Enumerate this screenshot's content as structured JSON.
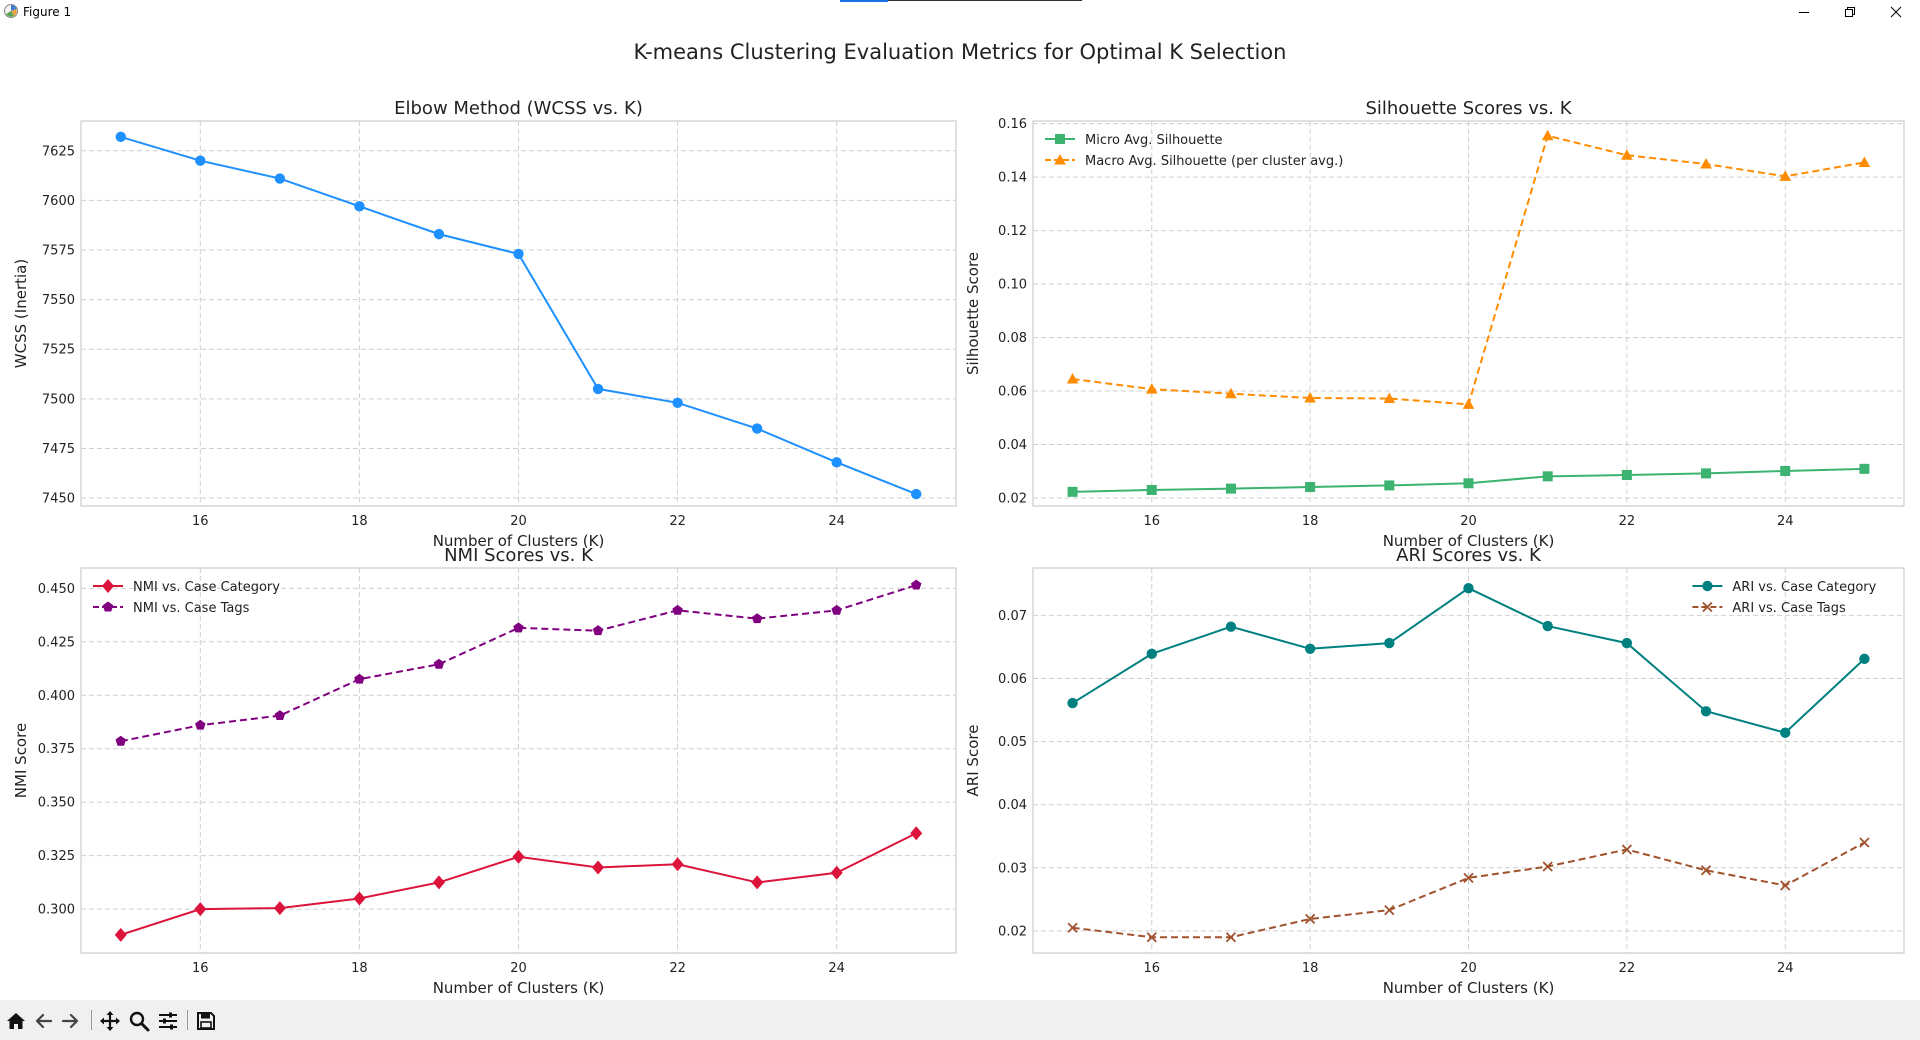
{
  "window": {
    "title": "Figure 1",
    "minimize_icon": "minimize-icon",
    "restore_icon": "restore-icon",
    "close_icon": "close-icon"
  },
  "figure": {
    "suptitle": "K-means Clustering Evaluation Metrics for Optimal K Selection"
  },
  "toolbar": {
    "buttons": [
      "home-icon",
      "back-icon",
      "forward-icon",
      "pan-icon",
      "zoom-icon",
      "configure-icon",
      "save-icon"
    ]
  },
  "colors": {
    "wcss": "#1e90ff",
    "micro_silhouette": "#3cb371",
    "macro_silhouette": "#ff8c00",
    "nmi_category": "#dc143c",
    "nmi_tags": "#800080",
    "ari_category": "#008080",
    "ari_tags": "#a0522d",
    "grid": "#d0d0d0",
    "axes_edge": "#cccccc"
  },
  "chart_data": [
    {
      "type": "line",
      "title": "Elbow Method (WCSS vs. K)",
      "xlabel": "Number of Clusters (K)",
      "ylabel": "WCSS (Inertia)",
      "x": [
        15,
        16,
        17,
        18,
        19,
        20,
        21,
        22,
        23,
        24,
        25
      ],
      "xlim": [
        14.5,
        25.5
      ],
      "ylim": [
        7446,
        7640
      ],
      "xticks": [
        16,
        18,
        20,
        22,
        24
      ],
      "yticks": [
        7450,
        7475,
        7500,
        7525,
        7550,
        7575,
        7600,
        7625
      ],
      "grid": true,
      "legend": "",
      "series": [
        {
          "values": [
            7632,
            7620,
            7611,
            7597,
            7583,
            7573,
            7505,
            7498,
            7485,
            7468,
            7452
          ],
          "color": "#1e90ff",
          "marker": "circle",
          "dash": "solid"
        }
      ]
    },
    {
      "type": "line",
      "title": "Silhouette Scores vs. K",
      "xlabel": "Number of Clusters (K)",
      "ylabel": "Silhouette Score",
      "x": [
        15,
        16,
        17,
        18,
        19,
        20,
        21,
        22,
        23,
        24,
        25
      ],
      "xlim": [
        14.5,
        25.5
      ],
      "ylim": [
        0.017,
        0.161
      ],
      "xticks": [
        16,
        18,
        20,
        22,
        24
      ],
      "yticks": [
        0.02,
        0.04,
        0.06,
        0.08,
        0.1,
        0.12,
        0.14,
        0.16
      ],
      "ytick_labels": [
        "0.02",
        "0.04",
        "0.06",
        "0.08",
        "0.10",
        "0.12",
        "0.14",
        "0.16"
      ],
      "grid": true,
      "legend": "top-left",
      "series": [
        {
          "name": "Micro Avg. Silhouette",
          "values": [
            0.0223,
            0.023,
            0.0235,
            0.0241,
            0.0247,
            0.0255,
            0.0281,
            0.0286,
            0.0292,
            0.0301,
            0.0309
          ],
          "color": "#3cb371",
          "marker": "square",
          "dash": "solid"
        },
        {
          "name": "Macro Avg. Silhouette (per cluster avg.)",
          "values": [
            0.0645,
            0.0607,
            0.059,
            0.0574,
            0.0572,
            0.055,
            0.1555,
            0.1482,
            0.1449,
            0.1403,
            0.1455
          ],
          "color": "#ff8c00",
          "marker": "triangle",
          "dash": "dashed"
        }
      ]
    },
    {
      "type": "line",
      "title": "NMI Scores vs. K",
      "xlabel": "Number of Clusters (K)",
      "ylabel": "NMI Score",
      "x": [
        15,
        16,
        17,
        18,
        19,
        20,
        21,
        22,
        23,
        24,
        25
      ],
      "xlim": [
        14.5,
        25.5
      ],
      "ylim": [
        0.2795,
        0.4595
      ],
      "xticks": [
        16,
        18,
        20,
        22,
        24
      ],
      "yticks": [
        0.3,
        0.325,
        0.35,
        0.375,
        0.4,
        0.425,
        0.45
      ],
      "ytick_labels": [
        "0.300",
        "0.325",
        "0.350",
        "0.375",
        "0.400",
        "0.425",
        "0.450"
      ],
      "grid": true,
      "legend": "top-left",
      "series": [
        {
          "name": "NMI vs. Case Category",
          "values": [
            0.288,
            0.3,
            0.3005,
            0.305,
            0.3125,
            0.3245,
            0.3195,
            0.321,
            0.3125,
            0.317,
            0.3355
          ],
          "color": "#dc143c",
          "marker": "diamond",
          "dash": "solid"
        },
        {
          "name": "NMI vs. Case Tags",
          "values": [
            0.3785,
            0.386,
            0.3905,
            0.4075,
            0.4145,
            0.4315,
            0.4302,
            0.4397,
            0.4358,
            0.4397,
            0.4515
          ],
          "color": "#800080",
          "marker": "pentagon",
          "dash": "dashed"
        }
      ]
    },
    {
      "type": "line",
      "title": "ARI Scores vs. K",
      "xlabel": "Number of Clusters (K)",
      "ylabel": "ARI Score",
      "x": [
        15,
        16,
        17,
        18,
        19,
        20,
        21,
        22,
        23,
        24,
        25
      ],
      "xlim": [
        14.5,
        25.5
      ],
      "ylim": [
        0.0165,
        0.0775
      ],
      "xticks": [
        16,
        18,
        20,
        22,
        24
      ],
      "yticks": [
        0.02,
        0.03,
        0.04,
        0.05,
        0.06,
        0.07
      ],
      "ytick_labels": [
        "0.02",
        "0.03",
        "0.04",
        "0.05",
        "0.06",
        "0.07"
      ],
      "grid": true,
      "legend": "top-right",
      "series": [
        {
          "name": "ARI vs. Case Category",
          "values": [
            0.0561,
            0.0639,
            0.0682,
            0.0647,
            0.0656,
            0.0743,
            0.0683,
            0.0656,
            0.0548,
            0.0514,
            0.0631
          ],
          "color": "#008080",
          "marker": "circle",
          "dash": "solid"
        },
        {
          "name": "ARI vs. Case Tags",
          "values": [
            0.0205,
            0.019,
            0.019,
            0.0219,
            0.0233,
            0.0284,
            0.0302,
            0.0329,
            0.0296,
            0.0272,
            0.034
          ],
          "color": "#a0522d",
          "marker": "x",
          "dash": "dashed"
        }
      ]
    }
  ]
}
